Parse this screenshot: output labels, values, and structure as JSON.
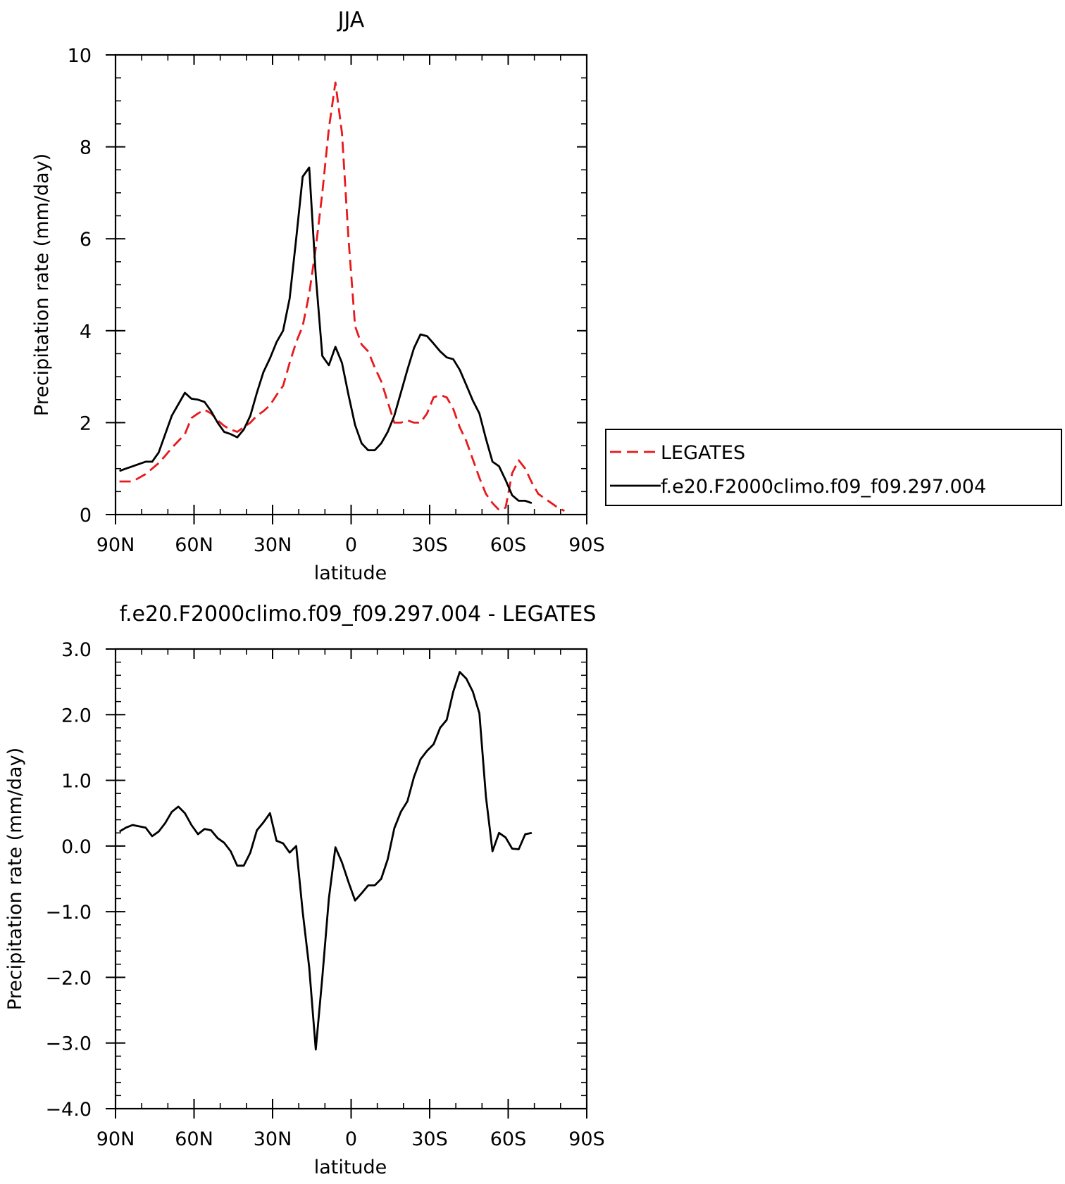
{
  "chart_data": [
    {
      "type": "line",
      "title": "JJA",
      "xlabel": "latitude",
      "ylabel": "Precipitation rate (mm/day)",
      "xlim": [
        90,
        -90
      ],
      "ylim": [
        0,
        10
      ],
      "x_ticks": [
        {
          "value": 90,
          "label": "90N"
        },
        {
          "value": 60,
          "label": "60N"
        },
        {
          "value": 30,
          "label": "30N"
        },
        {
          "value": 0,
          "label": "0"
        },
        {
          "value": -30,
          "label": "30S"
        },
        {
          "value": -60,
          "label": "60S"
        },
        {
          "value": -90,
          "label": "90S"
        }
      ],
      "y_ticks": [
        {
          "value": 0,
          "label": "0"
        },
        {
          "value": 2,
          "label": "2"
        },
        {
          "value": 4,
          "label": "4"
        },
        {
          "value": 6,
          "label": "6"
        },
        {
          "value": 8,
          "label": "8"
        },
        {
          "value": 10,
          "label": "10"
        }
      ],
      "legend_position": "outside-right",
      "series": [
        {
          "name": "LEGATES",
          "color": "#e8191c",
          "dash": "dashed",
          "points": [
            [
              88.5,
              0.72
            ],
            [
              86,
              0.72
            ],
            [
              83.5,
              0.72
            ],
            [
              81,
              0.8
            ],
            [
              78.5,
              0.88
            ],
            [
              76,
              1.0
            ],
            [
              73.5,
              1.12
            ],
            [
              71,
              1.28
            ],
            [
              68.5,
              1.45
            ],
            [
              66,
              1.6
            ],
            [
              63.5,
              1.75
            ],
            [
              61,
              2.1
            ],
            [
              58.5,
              2.2
            ],
            [
              56,
              2.28
            ],
            [
              53.5,
              2.2
            ],
            [
              51,
              2.05
            ],
            [
              48.5,
              1.93
            ],
            [
              46,
              1.85
            ],
            [
              43.5,
              1.8
            ],
            [
              41,
              1.9
            ],
            [
              38.5,
              2.0
            ],
            [
              36,
              2.15
            ],
            [
              33.5,
              2.25
            ],
            [
              31,
              2.38
            ],
            [
              28.5,
              2.6
            ],
            [
              26,
              2.8
            ],
            [
              23.5,
              3.3
            ],
            [
              21,
              3.75
            ],
            [
              18.5,
              4.1
            ],
            [
              16,
              4.8
            ],
            [
              13.5,
              5.8
            ],
            [
              11,
              7.0
            ],
            [
              8.5,
              8.4
            ],
            [
              6,
              9.4
            ],
            [
              3.5,
              8.3
            ],
            [
              1,
              6.0
            ],
            [
              -1.5,
              4.1
            ],
            [
              -4,
              3.7
            ],
            [
              -6.5,
              3.55
            ],
            [
              -9,
              3.2
            ],
            [
              -11.5,
              2.9
            ],
            [
              -14,
              2.45
            ],
            [
              -16.5,
              2.0
            ],
            [
              -19,
              2.0
            ],
            [
              -21.5,
              2.05
            ],
            [
              -24,
              2.0
            ],
            [
              -26.5,
              2.0
            ],
            [
              -29,
              2.2
            ],
            [
              -31.5,
              2.55
            ],
            [
              -34,
              2.6
            ],
            [
              -36.5,
              2.55
            ],
            [
              -39,
              2.3
            ],
            [
              -41.5,
              1.9
            ],
            [
              -44,
              1.6
            ],
            [
              -46.5,
              1.2
            ],
            [
              -49,
              0.8
            ],
            [
              -51.5,
              0.45
            ],
            [
              -54,
              0.25
            ],
            [
              -56.5,
              0.1
            ],
            [
              -59,
              0.15
            ],
            [
              -61.5,
              0.9
            ],
            [
              -64,
              1.18
            ],
            [
              -66.5,
              1.0
            ],
            [
              -69,
              0.7
            ],
            [
              -71.5,
              0.45
            ],
            [
              -74,
              0.35
            ],
            [
              -76.5,
              0.25
            ],
            [
              -79,
              0.15
            ],
            [
              -81.5,
              0.08
            ]
          ]
        },
        {
          "name": "f.e20.F2000climo.f09_f09.297.004",
          "color": "#000000",
          "dash": "solid",
          "points": [
            [
              88.5,
              0.95
            ],
            [
              86,
              1.0
            ],
            [
              83.5,
              1.05
            ],
            [
              81,
              1.1
            ],
            [
              78.5,
              1.15
            ],
            [
              76,
              1.15
            ],
            [
              73.5,
              1.35
            ],
            [
              71,
              1.75
            ],
            [
              68.5,
              2.15
            ],
            [
              66,
              2.4
            ],
            [
              63.5,
              2.65
            ],
            [
              61,
              2.52
            ],
            [
              58.5,
              2.5
            ],
            [
              56,
              2.45
            ],
            [
              53.5,
              2.25
            ],
            [
              51,
              2.0
            ],
            [
              48.5,
              1.8
            ],
            [
              46,
              1.75
            ],
            [
              43.5,
              1.68
            ],
            [
              41,
              1.85
            ],
            [
              38.5,
              2.15
            ],
            [
              36,
              2.65
            ],
            [
              33.5,
              3.1
            ],
            [
              31,
              3.4
            ],
            [
              28.5,
              3.75
            ],
            [
              26,
              4.0
            ],
            [
              23.5,
              4.7
            ],
            [
              21,
              6.0
            ],
            [
              18.5,
              7.35
            ],
            [
              16,
              7.55
            ],
            [
              13.5,
              5.2
            ],
            [
              11,
              3.45
            ],
            [
              8.5,
              3.25
            ],
            [
              6,
              3.65
            ],
            [
              3.5,
              3.3
            ],
            [
              1,
              2.6
            ],
            [
              -1.5,
              1.95
            ],
            [
              -4,
              1.55
            ],
            [
              -6.5,
              1.4
            ],
            [
              -9,
              1.4
            ],
            [
              -11.5,
              1.55
            ],
            [
              -14,
              1.8
            ],
            [
              -16.5,
              2.15
            ],
            [
              -19,
              2.65
            ],
            [
              -21.5,
              3.15
            ],
            [
              -24,
              3.62
            ],
            [
              -26.5,
              3.92
            ],
            [
              -29,
              3.88
            ],
            [
              -31.5,
              3.72
            ],
            [
              -34,
              3.55
            ],
            [
              -36.5,
              3.42
            ],
            [
              -39,
              3.38
            ],
            [
              -41.5,
              3.15
            ],
            [
              -44,
              2.82
            ],
            [
              -46.5,
              2.48
            ],
            [
              -49,
              2.2
            ],
            [
              -51.5,
              1.65
            ],
            [
              -54,
              1.15
            ],
            [
              -56.5,
              1.05
            ],
            [
              -59,
              0.75
            ],
            [
              -61.5,
              0.42
            ],
            [
              -64,
              0.3
            ],
            [
              -66.5,
              0.3
            ],
            [
              -69,
              0.25
            ]
          ]
        }
      ]
    },
    {
      "type": "line",
      "title": "f.e20.F2000climo.f09_f09.297.004 - LEGATES",
      "xlabel": "latitude",
      "ylabel": "Precipitation rate (mm/day)",
      "xlim": [
        90,
        -90
      ],
      "ylim": [
        -4.0,
        3.0
      ],
      "x_ticks": [
        {
          "value": 90,
          "label": "90N"
        },
        {
          "value": 60,
          "label": "60N"
        },
        {
          "value": 30,
          "label": "30N"
        },
        {
          "value": 0,
          "label": "0"
        },
        {
          "value": -30,
          "label": "30S"
        },
        {
          "value": -60,
          "label": "60S"
        },
        {
          "value": -90,
          "label": "90S"
        }
      ],
      "y_ticks": [
        {
          "value": -4,
          "label": "−4.0"
        },
        {
          "value": -3,
          "label": "−3.0"
        },
        {
          "value": -2,
          "label": "−2.0"
        },
        {
          "value": -1,
          "label": "−1.0"
        },
        {
          "value": 0,
          "label": "0.0"
        },
        {
          "value": 1,
          "label": "1.0"
        },
        {
          "value": 2,
          "label": "2.0"
        },
        {
          "value": 3,
          "label": "3.0"
        }
      ],
      "series": [
        {
          "name": "",
          "color": "#000000",
          "dash": "solid",
          "points": [
            [
              88.5,
              0.22
            ],
            [
              86,
              0.28
            ],
            [
              83.5,
              0.32
            ],
            [
              81,
              0.3
            ],
            [
              78.5,
              0.28
            ],
            [
              76,
              0.15
            ],
            [
              73.5,
              0.22
            ],
            [
              71,
              0.35
            ],
            [
              68.5,
              0.52
            ],
            [
              66,
              0.6
            ],
            [
              63.5,
              0.5
            ],
            [
              61,
              0.32
            ],
            [
              58.5,
              0.18
            ],
            [
              56,
              0.26
            ],
            [
              53.5,
              0.24
            ],
            [
              51,
              0.12
            ],
            [
              48.5,
              0.05
            ],
            [
              46,
              -0.08
            ],
            [
              43.5,
              -0.3
            ],
            [
              41,
              -0.3
            ],
            [
              38.5,
              -0.1
            ],
            [
              36,
              0.24
            ],
            [
              33.5,
              0.36
            ],
            [
              31,
              0.5
            ],
            [
              28.5,
              0.08
            ],
            [
              26,
              0.04
            ],
            [
              23.5,
              -0.1
            ],
            [
              21,
              0.0
            ],
            [
              18.5,
              -1.0
            ],
            [
              16,
              -1.85
            ],
            [
              13.5,
              -3.1
            ],
            [
              11,
              -2.0
            ],
            [
              8.5,
              -0.8
            ],
            [
              6,
              -0.02
            ],
            [
              3.5,
              -0.25
            ],
            [
              1,
              -0.55
            ],
            [
              -1.5,
              -0.83
            ],
            [
              -4,
              -0.72
            ],
            [
              -6.5,
              -0.6
            ],
            [
              -9,
              -0.6
            ],
            [
              -11.5,
              -0.5
            ],
            [
              -14,
              -0.2
            ],
            [
              -16.5,
              0.27
            ],
            [
              -19,
              0.52
            ],
            [
              -21.5,
              0.68
            ],
            [
              -24,
              1.05
            ],
            [
              -26.5,
              1.32
            ],
            [
              -29,
              1.45
            ],
            [
              -31.5,
              1.55
            ],
            [
              -34,
              1.8
            ],
            [
              -36.5,
              1.92
            ],
            [
              -39,
              2.35
            ],
            [
              -41.5,
              2.65
            ],
            [
              -44,
              2.55
            ],
            [
              -46.5,
              2.35
            ],
            [
              -49,
              2.02
            ],
            [
              -51.5,
              0.75
            ],
            [
              -54,
              -0.08
            ],
            [
              -56.5,
              0.2
            ],
            [
              -59,
              0.13
            ],
            [
              -61.5,
              -0.04
            ],
            [
              -64,
              -0.05
            ],
            [
              -66.5,
              0.18
            ],
            [
              -69,
              0.2
            ]
          ]
        }
      ]
    }
  ]
}
